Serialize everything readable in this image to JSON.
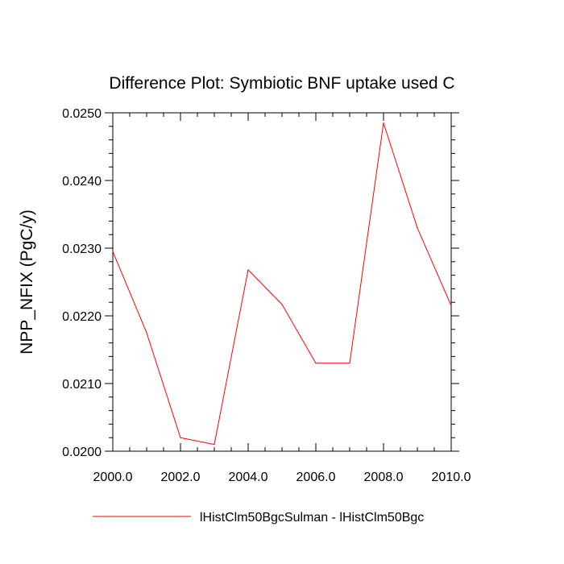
{
  "chart_data": {
    "type": "line",
    "title": "Difference Plot: Symbiotic BNF uptake used C",
    "xlabel": "",
    "ylabel": "NPP_NFIX  (PgC/y)",
    "xlim": [
      2000,
      2010
    ],
    "ylim": [
      0.02,
      0.025
    ],
    "xticks": [
      2000,
      2002,
      2004,
      2006,
      2008,
      2010
    ],
    "xtick_labels": [
      "2000.0",
      "2002.0",
      "2004.0",
      "2006.0",
      "2008.0",
      "2010.0"
    ],
    "yticks": [
      0.02,
      0.021,
      0.022,
      0.023,
      0.024,
      0.025
    ],
    "ytick_labels": [
      "0.0200",
      "0.0210",
      "0.0220",
      "0.0230",
      "0.0240",
      "0.0250"
    ],
    "grid": false,
    "legend_position": "bottom",
    "series": [
      {
        "name": "lHistClm50BgcSulman - lHistClm50Bgc",
        "color": "#ff0000",
        "x": [
          2000,
          2001,
          2002,
          2003,
          2004,
          2005,
          2006,
          2007,
          2008,
          2009,
          2010
        ],
        "y": [
          0.02295,
          0.02175,
          0.0202,
          0.0201,
          0.02268,
          0.02217,
          0.0213,
          0.0213,
          0.02485,
          0.0233,
          0.02215
        ]
      }
    ]
  }
}
